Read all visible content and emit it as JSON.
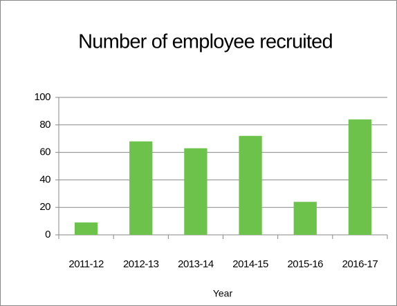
{
  "chart_data": {
    "type": "bar",
    "title": "Number of employee recruited",
    "x_label": "Year",
    "categories": [
      "2011-12",
      "2012-13",
      "2013-14",
      "2014-15",
      "2015-16",
      "2016-17"
    ],
    "values": [
      9,
      68,
      63,
      72,
      24,
      84
    ],
    "color": "#6cc24a",
    "ylim": [
      0,
      100
    ],
    "yticks": [
      0,
      20,
      40,
      60,
      80,
      100
    ],
    "grid": true
  }
}
